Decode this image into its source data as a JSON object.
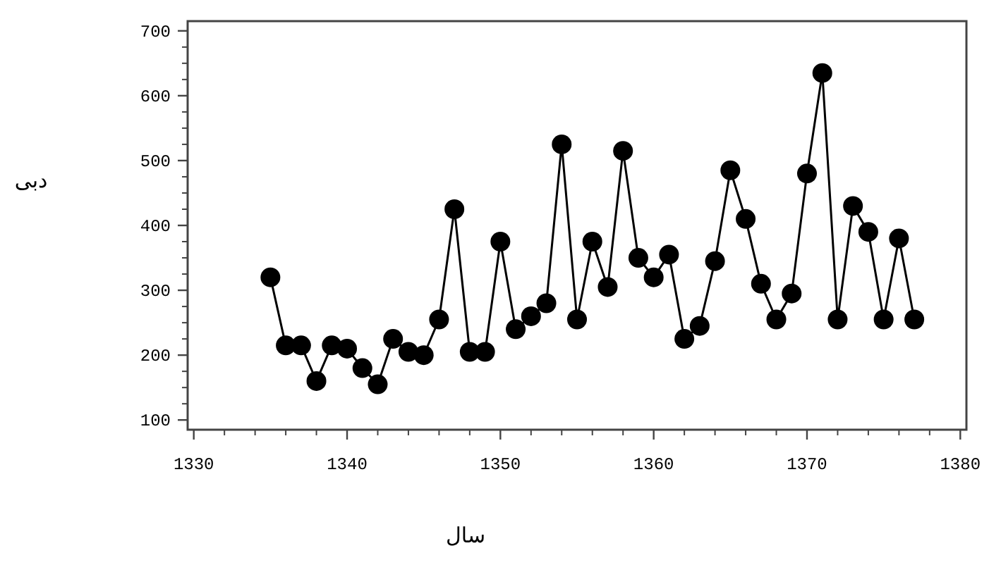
{
  "chart_data": {
    "type": "line",
    "xlabel": "سال",
    "ylabel": "دبی",
    "x": [
      1335,
      1336,
      1337,
      1338,
      1339,
      1340,
      1341,
      1342,
      1343,
      1344,
      1345,
      1346,
      1347,
      1348,
      1349,
      1350,
      1351,
      1352,
      1353,
      1354,
      1355,
      1356,
      1357,
      1358,
      1359,
      1360,
      1361,
      1362,
      1363,
      1364,
      1365,
      1366,
      1367,
      1368,
      1369,
      1370,
      1371,
      1372,
      1373,
      1374,
      1375,
      1376,
      1377
    ],
    "values": [
      320,
      215,
      215,
      160,
      215,
      210,
      180,
      155,
      225,
      205,
      200,
      255,
      425,
      205,
      205,
      375,
      240,
      260,
      280,
      525,
      255,
      375,
      305,
      515,
      350,
      320,
      355,
      225,
      245,
      345,
      485,
      410,
      310,
      255,
      295,
      480,
      635,
      255,
      430,
      390,
      255,
      380,
      255
    ],
    "color": "#000000",
    "marker": "circle",
    "line_style": "solid",
    "xlim": [
      1329.6,
      1380.4
    ],
    "ylim": [
      85,
      715
    ],
    "xticks": [
      1330,
      1340,
      1350,
      1360,
      1370,
      1380
    ],
    "yticks": [
      100,
      200,
      300,
      400,
      500,
      600,
      700
    ]
  }
}
